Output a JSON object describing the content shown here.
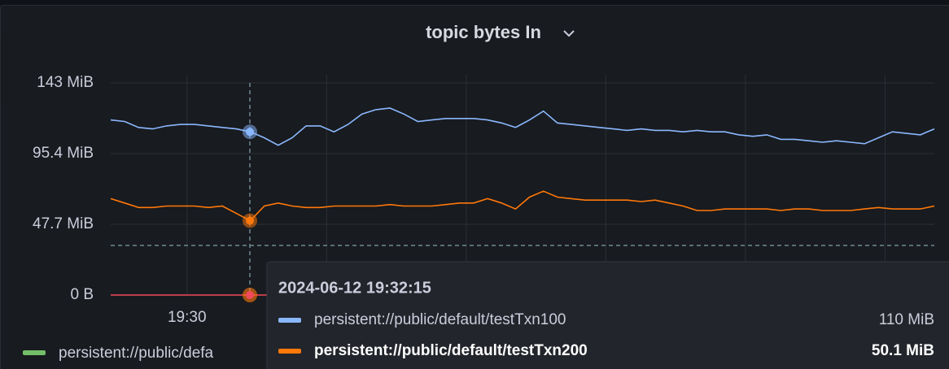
{
  "chart_data": {
    "type": "line",
    "title": "topic bytes In",
    "categories": [
      null,
      null,
      null,
      null,
      null,
      "19:30",
      null,
      null,
      null,
      null,
      null,
      null,
      null,
      null,
      null,
      null,
      null,
      null,
      null,
      null,
      null,
      null,
      null,
      null,
      null,
      null,
      null,
      null,
      null,
      null,
      null,
      null,
      null,
      null,
      null,
      null,
      null,
      null,
      null,
      null,
      null,
      null,
      null,
      null,
      null,
      null,
      null,
      null,
      null,
      null,
      null,
      null,
      null,
      null,
      null,
      null,
      null,
      null,
      null,
      null
    ],
    "series": [
      {
        "name": "persistent://public/default/testTxn100",
        "color": "#8ab8ff",
        "values": [
          118,
          117,
          113,
          112,
          114,
          115,
          115,
          114,
          113,
          112,
          110,
          106,
          101,
          106,
          114,
          114,
          110,
          115,
          122,
          125,
          126,
          122,
          117,
          118,
          119,
          119,
          119,
          118,
          116,
          113,
          118,
          124,
          116,
          115,
          114,
          113,
          112,
          111,
          112,
          111,
          111,
          110,
          111,
          110,
          110,
          108,
          107,
          108,
          105,
          105,
          104,
          103,
          104,
          103,
          102,
          106,
          110,
          109,
          108,
          112
        ]
      },
      {
        "name": "persistent://public/default/testTxn200",
        "color": "#ff780a",
        "values": [
          65,
          62,
          59,
          59,
          60,
          60,
          60,
          59,
          60,
          55,
          50.1,
          60,
          62,
          60,
          59,
          59,
          60,
          60,
          60,
          60,
          61,
          60,
          60,
          60,
          61,
          62,
          62,
          65,
          62,
          58,
          66,
          70,
          66,
          65,
          64,
          64,
          64,
          64,
          63,
          64,
          62,
          60,
          57,
          57,
          58,
          58,
          58,
          58,
          57,
          58,
          58,
          57,
          57,
          57,
          58,
          59,
          58,
          58,
          58,
          60
        ]
      },
      {
        "name": "persistent://public/defa",
        "color": "#73bf69",
        "line_color": "#f2495c",
        "values": [
          0,
          0,
          0,
          0,
          0,
          0,
          0,
          0,
          0,
          0,
          0,
          0,
          0,
          0,
          0,
          0,
          0,
          0,
          0,
          0,
          0,
          0,
          0,
          0,
          0,
          0,
          0,
          0,
          0,
          0,
          0,
          0,
          0,
          0,
          0,
          0,
          0,
          0,
          0,
          0,
          0,
          0,
          0,
          0,
          0,
          0,
          0,
          0,
          0,
          0,
          0,
          0,
          0,
          0,
          0,
          0,
          0,
          0,
          0,
          0
        ]
      }
    ],
    "ylim": [
      0,
      143
    ],
    "yticks": [
      {
        "value": 0,
        "label": "0 B"
      },
      {
        "value": 47.7,
        "label": "47.7 MiB"
      },
      {
        "value": 95.4,
        "label": "95.4 MiB"
      },
      {
        "value": 143,
        "label": "143 MiB"
      }
    ],
    "threshold": 33.4,
    "grid": true,
    "tooltip": {
      "time": "2024-06-12 19:32:15",
      "rows": [
        {
          "name": "persistent://public/default/testTxn100",
          "color": "#8ab8ff",
          "value": 110,
          "label": "110 MiB"
        },
        {
          "name": "persistent://public/default/testTxn200",
          "color": "#ff780a",
          "value": 50.1,
          "label": "50.1 MiB"
        }
      ]
    }
  }
}
